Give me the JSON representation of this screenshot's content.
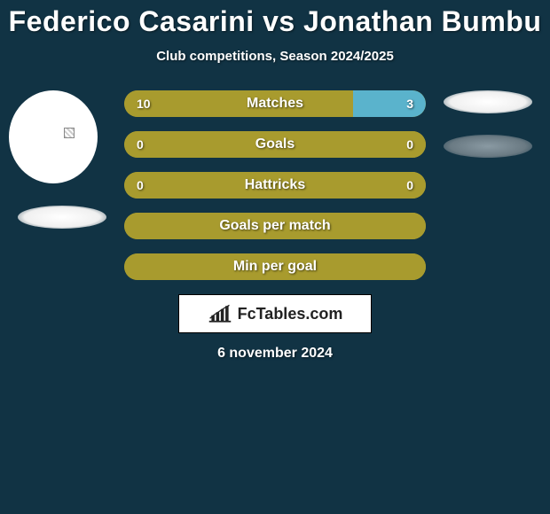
{
  "title": "Federico Casarini vs Jonathan Bumbu",
  "subtitle": "Club competitions, Season 2024/2025",
  "date": "6 november 2024",
  "watermark": "FcTables.com",
  "colors": {
    "background": "#113344",
    "bar_base": "#a89b2e",
    "bar_accent": "#5ab3cc",
    "text": "#ffffff",
    "watermark_bg": "#ffffff",
    "watermark_text": "#222222"
  },
  "stats": [
    {
      "label": "Matches",
      "left_value": "10",
      "right_value": "3",
      "left_pct": 76,
      "right_pct": 24,
      "left_color": "#a89b2e",
      "right_color": "#5ab3cc"
    },
    {
      "label": "Goals",
      "left_value": "0",
      "right_value": "0",
      "left_pct": 100,
      "right_pct": 0,
      "left_color": "#a89b2e",
      "right_color": "#5ab3cc"
    },
    {
      "label": "Hattricks",
      "left_value": "0",
      "right_value": "0",
      "left_pct": 100,
      "right_pct": 0,
      "left_color": "#a89b2e",
      "right_color": "#5ab3cc"
    },
    {
      "label": "Goals per match",
      "left_value": "",
      "right_value": "",
      "left_pct": 100,
      "right_pct": 0,
      "left_color": "#a89b2e",
      "right_color": "#5ab3cc"
    },
    {
      "label": "Min per goal",
      "left_value": "",
      "right_value": "",
      "left_pct": 100,
      "right_pct": 0,
      "left_color": "#a89b2e",
      "right_color": "#5ab3cc"
    }
  ]
}
